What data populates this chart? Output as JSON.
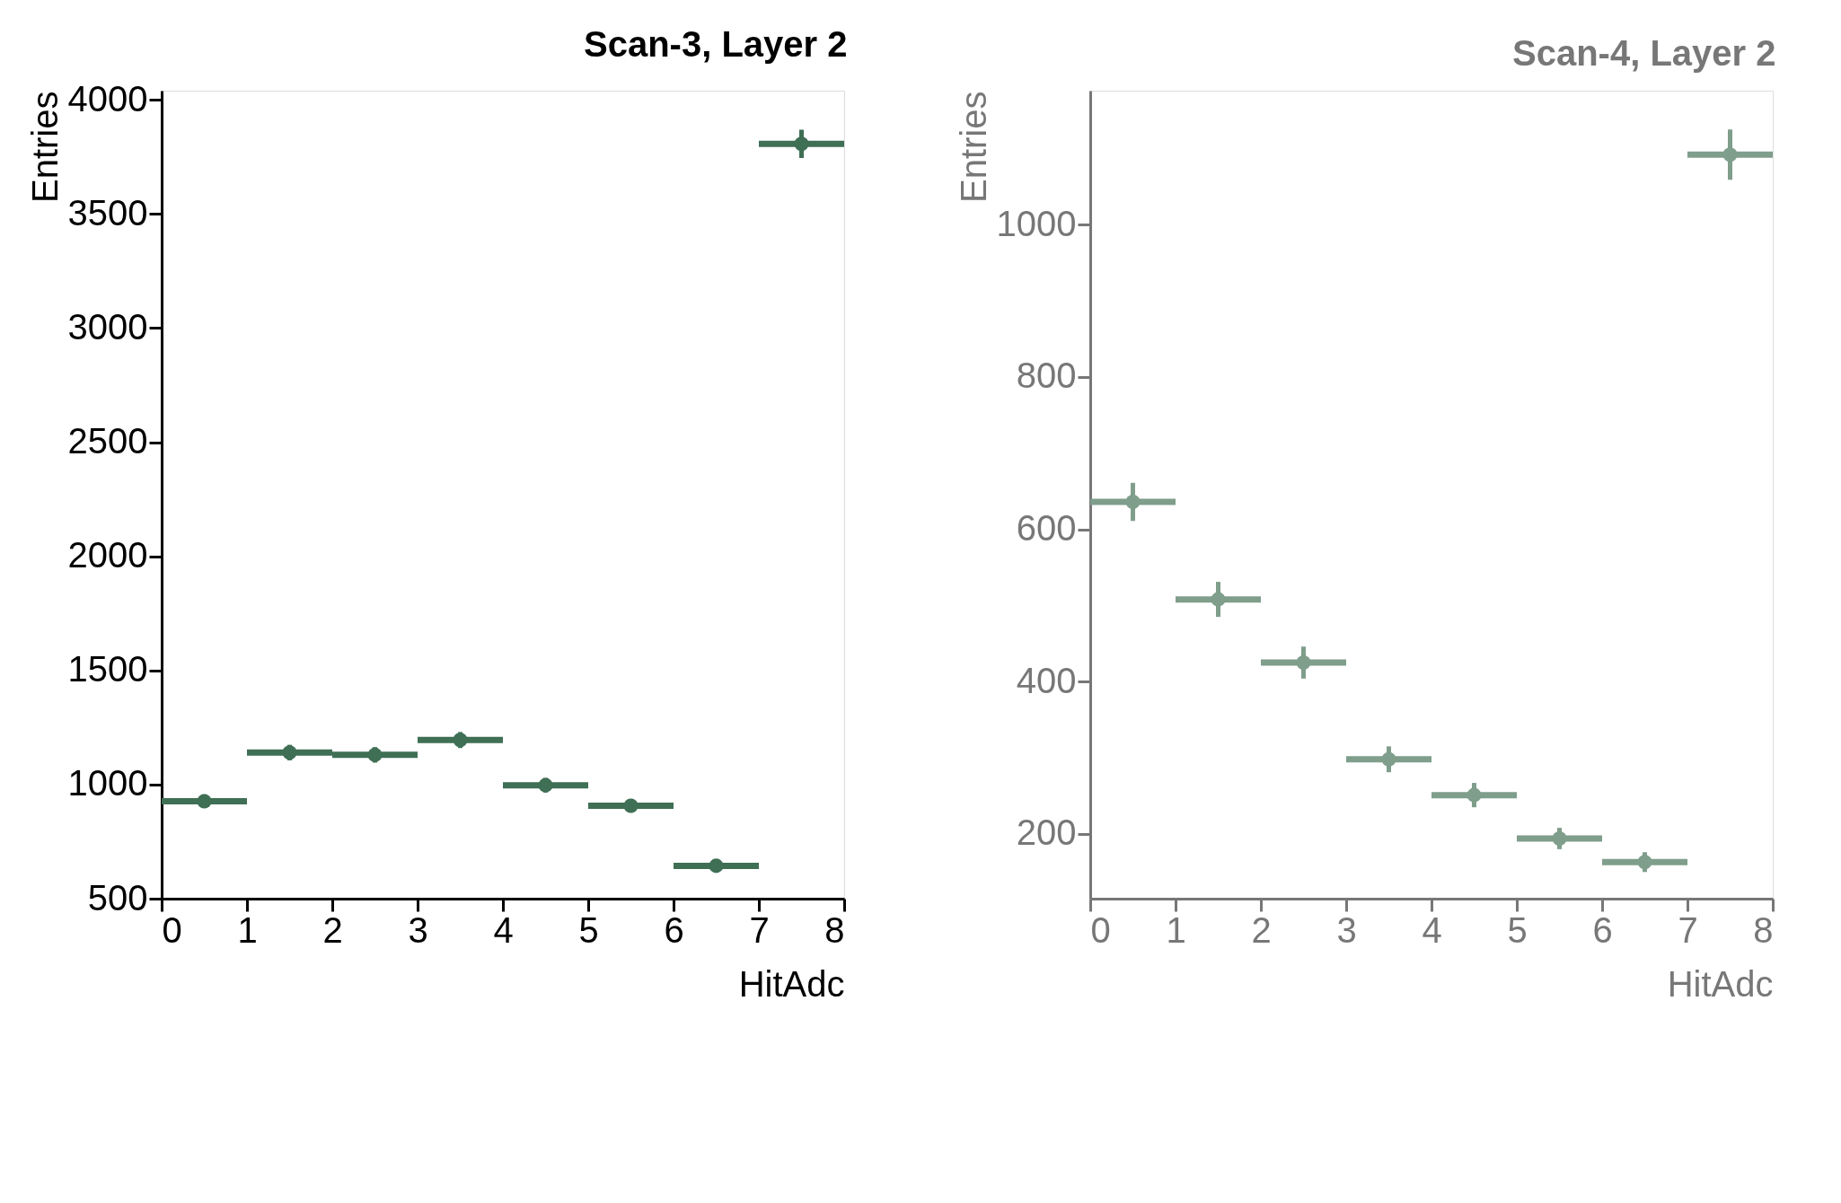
{
  "chart_data": [
    {
      "type": "scatter",
      "title": "Scan-3, Layer 2",
      "xlabel": "HitAdc",
      "ylabel": "Entries",
      "x": [
        0.5,
        1.5,
        2.5,
        3.5,
        4.5,
        5.5,
        6.5,
        7.5
      ],
      "series": [
        {
          "color": "#3f6f55",
          "values": [
            927,
            1140,
            1130,
            1195,
            997,
            907,
            644,
            3807
          ],
          "errors": [
            30,
            34,
            34,
            35,
            32,
            30,
            25,
            62
          ],
          "xerrors": [
            0.5,
            0.5,
            0.5,
            0.5,
            0.5,
            0.5,
            0.5,
            0.5
          ]
        }
      ],
      "xlim": [
        0,
        8
      ],
      "xticks": [
        0,
        1,
        2,
        3,
        4,
        5,
        6,
        7,
        8
      ],
      "ylim": [
        500,
        4040
      ],
      "yticks": [
        500,
        1000,
        1500,
        2000,
        2500,
        3000,
        3500,
        4000
      ],
      "marker": "circle",
      "grid": false
    },
    {
      "type": "scatter",
      "title": "Scan-4, Layer 2",
      "xlabel": "HitAdc",
      "ylabel": "Entries",
      "x": [
        0.5,
        1.5,
        2.5,
        3.5,
        4.5,
        5.5,
        6.5,
        7.5
      ],
      "series": [
        {
          "color": "#7f9e8b",
          "values": [
            636,
            508,
            425,
            298,
            251,
            194,
            163,
            1092
          ],
          "errors": [
            25,
            23,
            21,
            17,
            16,
            14,
            13,
            33
          ],
          "xerrors": [
            0.5,
            0.5,
            0.5,
            0.5,
            0.5,
            0.5,
            0.5,
            0.5
          ]
        }
      ],
      "xlim": [
        0,
        8
      ],
      "xticks": [
        0,
        1,
        2,
        3,
        4,
        5,
        6,
        7,
        8
      ],
      "ylim": [
        115,
        1176
      ],
      "yticks": [
        200,
        400,
        600,
        800,
        1000
      ],
      "marker": "circle",
      "grid": false
    }
  ]
}
